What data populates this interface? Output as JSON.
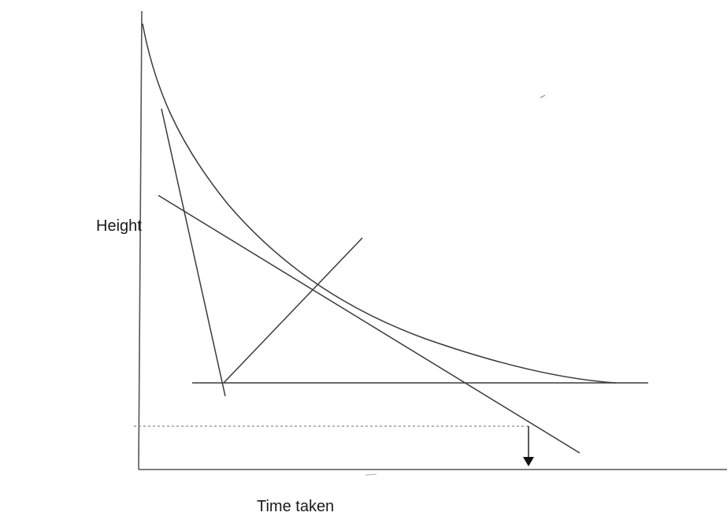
{
  "diagram": {
    "y_axis_label": "Height",
    "x_axis_label": "Time taken",
    "colors": {
      "line": "#3a3a3a",
      "dashed": "#8a8a8a",
      "arrow": "#111111",
      "background": "#ffffff"
    }
  }
}
